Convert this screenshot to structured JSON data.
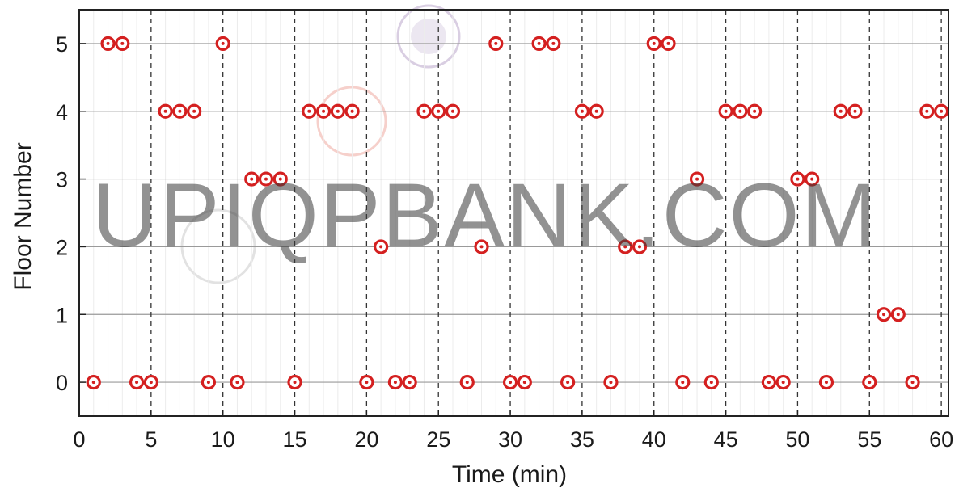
{
  "chart_data": {
    "type": "scatter",
    "title": "",
    "xlabel": "Time (min)",
    "ylabel": "Floor Number",
    "xlim": [
      0,
      60.5
    ],
    "ylim": [
      -0.5,
      5.5
    ],
    "xticks": [
      "0",
      "5",
      "10",
      "15",
      "20",
      "25",
      "30",
      "35",
      "40",
      "45",
      "50",
      "55",
      "60"
    ],
    "xtick_values": [
      0,
      5,
      10,
      15,
      20,
      25,
      30,
      35,
      40,
      45,
      50,
      55,
      60
    ],
    "yticks": [
      "0",
      "1",
      "2",
      "3",
      "4",
      "5"
    ],
    "ytick_values": [
      0,
      1,
      2,
      3,
      4,
      5
    ],
    "grid": {
      "horizontal_solid": true,
      "vertical_dashed_every_5_min": true
    },
    "series": [
      {
        "x": [
          1,
          2,
          3,
          4,
          5,
          6,
          7,
          8,
          9,
          10,
          11,
          12,
          13,
          14,
          15,
          16,
          17,
          18,
          19,
          20,
          21,
          22,
          23,
          24,
          25,
          26,
          27,
          28,
          29,
          30,
          31,
          32,
          33,
          34,
          35,
          36,
          37,
          38,
          39,
          40,
          41,
          42,
          43,
          44,
          45,
          46,
          47,
          48,
          49,
          50,
          51,
          52,
          53,
          54,
          55,
          56,
          57,
          58,
          59,
          60
        ],
        "y": [
          0,
          5,
          5,
          0,
          0,
          4,
          4,
          4,
          0,
          5,
          0,
          3,
          3,
          3,
          0,
          4,
          4,
          4,
          4,
          0,
          2,
          0,
          0,
          4,
          4,
          4,
          0,
          2,
          5,
          0,
          0,
          5,
          5,
          0,
          4,
          4,
          0,
          2,
          2,
          5,
          5,
          0,
          3,
          0,
          4,
          4,
          4,
          0,
          0,
          3,
          3,
          0,
          4,
          4,
          0,
          1,
          1,
          0,
          4,
          4
        ]
      }
    ],
    "marker_color": "#d42020"
  },
  "watermark": {
    "text": "UPIQPBANK.COM"
  }
}
